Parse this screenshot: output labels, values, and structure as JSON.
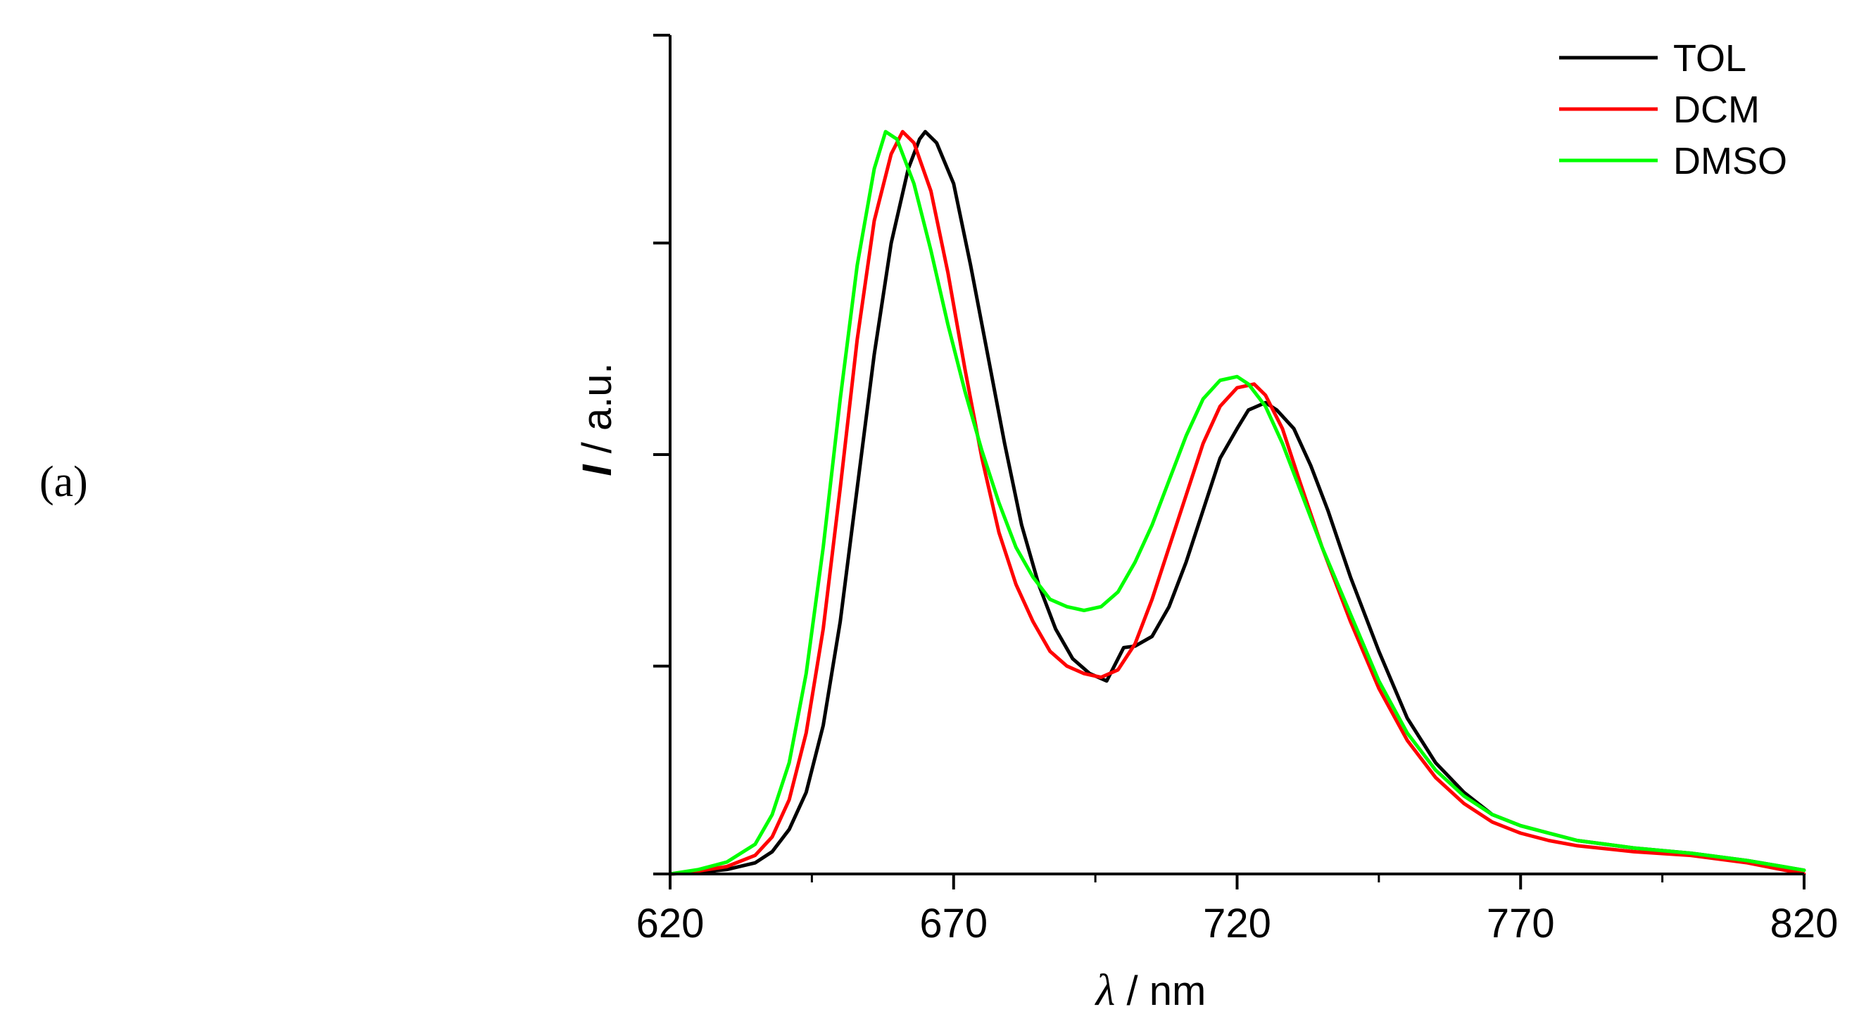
{
  "panel_label": "(a)",
  "chart_data": {
    "type": "line",
    "xlabel": "λ / nm",
    "ylabel": "I / a.u.",
    "xlabel_parts": {
      "symbol": "λ",
      "unit": " / nm"
    },
    "ylabel_parts": {
      "symbol": "I",
      "unit": " / a.u."
    },
    "xlim": [
      620,
      820
    ],
    "ylim": [
      0,
      1.13
    ],
    "x_ticks": [
      620,
      670,
      720,
      770,
      820
    ],
    "x_tick_labels": [
      "620",
      "670",
      "720",
      "770",
      "820"
    ],
    "x_minor_ticks": [
      645,
      695,
      745,
      795
    ],
    "y_ticks": [
      0,
      0.28,
      0.565,
      0.85,
      1.13
    ],
    "y_tick_labels_shown": false,
    "legend_position": "top-right",
    "series": [
      {
        "name": "TOL",
        "color": "#000000",
        "points": [
          [
            620,
            0.0
          ],
          [
            625,
            0.002
          ],
          [
            630,
            0.006
          ],
          [
            635,
            0.015
          ],
          [
            638,
            0.03
          ],
          [
            641,
            0.06
          ],
          [
            644,
            0.11
          ],
          [
            647,
            0.2
          ],
          [
            650,
            0.34
          ],
          [
            653,
            0.52
          ],
          [
            656,
            0.7
          ],
          [
            659,
            0.85
          ],
          [
            662,
            0.95
          ],
          [
            664,
            0.99
          ],
          [
            665,
            1.0
          ],
          [
            667,
            0.985
          ],
          [
            670,
            0.93
          ],
          [
            673,
            0.82
          ],
          [
            676,
            0.7
          ],
          [
            679,
            0.58
          ],
          [
            682,
            0.47
          ],
          [
            685,
            0.39
          ],
          [
            688,
            0.33
          ],
          [
            691,
            0.29
          ],
          [
            694,
            0.27
          ],
          [
            697,
            0.26
          ],
          [
            700,
            0.305
          ],
          [
            702,
            0.307
          ],
          [
            705,
            0.32
          ],
          [
            708,
            0.36
          ],
          [
            711,
            0.42
          ],
          [
            714,
            0.49
          ],
          [
            717,
            0.56
          ],
          [
            720,
            0.6
          ],
          [
            722,
            0.625
          ],
          [
            725,
            0.635
          ],
          [
            727,
            0.625
          ],
          [
            730,
            0.6
          ],
          [
            733,
            0.55
          ],
          [
            736,
            0.49
          ],
          [
            740,
            0.4
          ],
          [
            745,
            0.3
          ],
          [
            750,
            0.21
          ],
          [
            755,
            0.15
          ],
          [
            760,
            0.11
          ],
          [
            765,
            0.08
          ],
          [
            770,
            0.065
          ],
          [
            775,
            0.055
          ],
          [
            780,
            0.045
          ],
          [
            790,
            0.035
          ],
          [
            800,
            0.028
          ],
          [
            810,
            0.018
          ],
          [
            820,
            0.005
          ]
        ]
      },
      {
        "name": "DCM",
        "color": "#ff0000",
        "points": [
          [
            620,
            0.0
          ],
          [
            625,
            0.004
          ],
          [
            630,
            0.01
          ],
          [
            635,
            0.025
          ],
          [
            638,
            0.05
          ],
          [
            641,
            0.1
          ],
          [
            644,
            0.19
          ],
          [
            647,
            0.33
          ],
          [
            650,
            0.52
          ],
          [
            653,
            0.72
          ],
          [
            656,
            0.88
          ],
          [
            659,
            0.97
          ],
          [
            661,
            1.0
          ],
          [
            663,
            0.985
          ],
          [
            666,
            0.92
          ],
          [
            669,
            0.81
          ],
          [
            672,
            0.68
          ],
          [
            675,
            0.56
          ],
          [
            678,
            0.46
          ],
          [
            681,
            0.39
          ],
          [
            684,
            0.34
          ],
          [
            687,
            0.3
          ],
          [
            690,
            0.28
          ],
          [
            693,
            0.27
          ],
          [
            696,
            0.265
          ],
          [
            699,
            0.275
          ],
          [
            702,
            0.31
          ],
          [
            705,
            0.37
          ],
          [
            708,
            0.44
          ],
          [
            711,
            0.51
          ],
          [
            714,
            0.58
          ],
          [
            717,
            0.63
          ],
          [
            720,
            0.655
          ],
          [
            723,
            0.66
          ],
          [
            725,
            0.645
          ],
          [
            728,
            0.6
          ],
          [
            731,
            0.53
          ],
          [
            735,
            0.44
          ],
          [
            740,
            0.34
          ],
          [
            745,
            0.25
          ],
          [
            750,
            0.18
          ],
          [
            755,
            0.13
          ],
          [
            760,
            0.095
          ],
          [
            765,
            0.07
          ],
          [
            770,
            0.055
          ],
          [
            775,
            0.045
          ],
          [
            780,
            0.038
          ],
          [
            790,
            0.03
          ],
          [
            800,
            0.025
          ],
          [
            810,
            0.015
          ],
          [
            820,
            0.0
          ]
        ]
      },
      {
        "name": "DMSO",
        "color": "#00ff00",
        "points": [
          [
            620,
            0.0
          ],
          [
            625,
            0.006
          ],
          [
            630,
            0.016
          ],
          [
            635,
            0.04
          ],
          [
            638,
            0.08
          ],
          [
            641,
            0.15
          ],
          [
            644,
            0.27
          ],
          [
            647,
            0.44
          ],
          [
            650,
            0.64
          ],
          [
            653,
            0.82
          ],
          [
            656,
            0.95
          ],
          [
            658,
            1.0
          ],
          [
            660,
            0.99
          ],
          [
            663,
            0.93
          ],
          [
            666,
            0.84
          ],
          [
            669,
            0.74
          ],
          [
            672,
            0.65
          ],
          [
            675,
            0.57
          ],
          [
            678,
            0.5
          ],
          [
            681,
            0.44
          ],
          [
            684,
            0.4
          ],
          [
            687,
            0.37
          ],
          [
            690,
            0.36
          ],
          [
            693,
            0.355
          ],
          [
            696,
            0.36
          ],
          [
            699,
            0.38
          ],
          [
            702,
            0.42
          ],
          [
            705,
            0.47
          ],
          [
            708,
            0.53
          ],
          [
            711,
            0.59
          ],
          [
            714,
            0.64
          ],
          [
            717,
            0.665
          ],
          [
            720,
            0.67
          ],
          [
            722,
            0.66
          ],
          [
            725,
            0.63
          ],
          [
            728,
            0.58
          ],
          [
            731,
            0.52
          ],
          [
            735,
            0.44
          ],
          [
            740,
            0.35
          ],
          [
            745,
            0.26
          ],
          [
            750,
            0.19
          ],
          [
            755,
            0.14
          ],
          [
            760,
            0.105
          ],
          [
            765,
            0.08
          ],
          [
            770,
            0.065
          ],
          [
            775,
            0.055
          ],
          [
            780,
            0.045
          ],
          [
            790,
            0.035
          ],
          [
            800,
            0.028
          ],
          [
            810,
            0.018
          ],
          [
            820,
            0.005
          ]
        ]
      }
    ]
  }
}
